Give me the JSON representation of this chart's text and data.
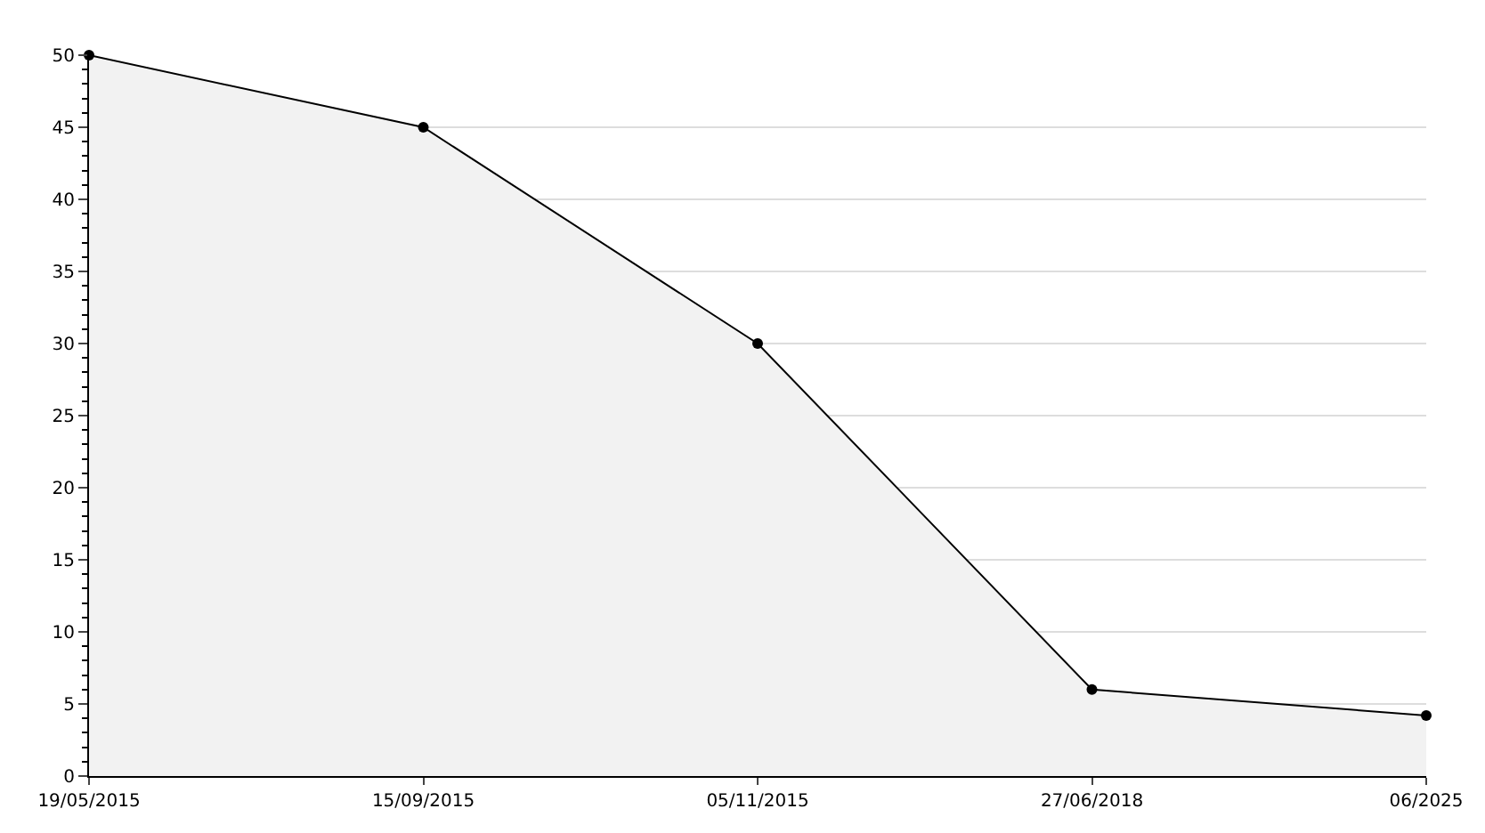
{
  "chart_data": {
    "type": "area",
    "categories": [
      "19/05/2015",
      "15/09/2015",
      "05/11/2015",
      "27/06/2018",
      "06/2025"
    ],
    "series": [
      {
        "color": "#000000",
        "values": [
          50,
          45,
          30,
          6,
          4.2
        ]
      }
    ],
    "ylim": [
      0,
      50
    ],
    "yticks": [
      0,
      5,
      10,
      15,
      20,
      25,
      30,
      35,
      40,
      45,
      50
    ],
    "grid": "y",
    "marker": "circle",
    "line_style": "solid",
    "legend": false
  }
}
